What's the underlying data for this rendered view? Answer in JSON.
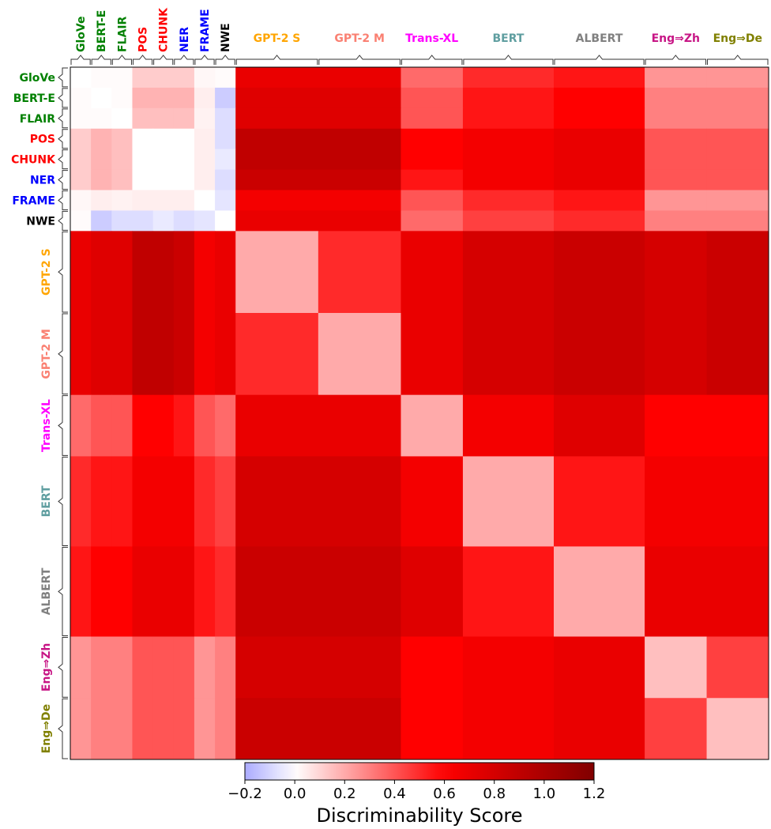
{
  "chart_data": {
    "type": "heatmap",
    "title": "",
    "groups": [
      {
        "label": "GloVe",
        "color": "#008000",
        "size": 1
      },
      {
        "label": "BERT-E",
        "color": "#008000",
        "size": 1
      },
      {
        "label": "FLAIR",
        "color": "#008000",
        "size": 1
      },
      {
        "label": "POS",
        "color": "#ff0000",
        "size": 1
      },
      {
        "label": "CHUNK",
        "color": "#ff0000",
        "size": 1
      },
      {
        "label": "NER",
        "color": "#0000ff",
        "size": 1
      },
      {
        "label": "FRAME",
        "color": "#0000ff",
        "size": 1
      },
      {
        "label": "NWE",
        "color": "#000000",
        "size": 1
      },
      {
        "label": "GPT-2 S",
        "color": "#ffa500",
        "size": 4
      },
      {
        "label": "GPT-2 M",
        "color": "#fa8072",
        "size": 4
      },
      {
        "label": "Trans-XL",
        "color": "#ff00ff",
        "size": 3
      },
      {
        "label": "BERT",
        "color": "#5f9ea0",
        "size": 4.4
      },
      {
        "label": "ALBERT",
        "color": "#808080",
        "size": 4.4
      },
      {
        "label": "Eng⇒Zh",
        "color": "#c71585",
        "size": 3
      },
      {
        "label": "Eng⇒De",
        "color": "#808000",
        "size": 3
      }
    ],
    "symmetric": true,
    "block_mean_values": [
      [
        0.0,
        0.01,
        0.01,
        0.12,
        0.12,
        0.12,
        0.02,
        0.01,
        0.7,
        0.7,
        0.35,
        0.5,
        0.55,
        0.25,
        0.25
      ],
      [
        0.01,
        0.0,
        0.01,
        0.18,
        0.18,
        0.18,
        0.04,
        -0.12,
        0.75,
        0.75,
        0.4,
        0.55,
        0.6,
        0.3,
        0.3
      ],
      [
        0.01,
        0.01,
        0.0,
        0.15,
        0.15,
        0.15,
        0.03,
        -0.08,
        0.75,
        0.75,
        0.4,
        0.55,
        0.6,
        0.3,
        0.3
      ],
      [
        0.12,
        0.18,
        0.15,
        0.0,
        0.0,
        0.0,
        0.04,
        -0.08,
        0.9,
        0.9,
        0.6,
        0.65,
        0.7,
        0.4,
        0.4
      ],
      [
        0.12,
        0.18,
        0.15,
        0.0,
        0.0,
        0.0,
        0.04,
        -0.05,
        0.9,
        0.9,
        0.6,
        0.65,
        0.7,
        0.4,
        0.4
      ],
      [
        0.12,
        0.18,
        0.15,
        0.0,
        0.0,
        0.0,
        0.04,
        -0.08,
        0.85,
        0.85,
        0.55,
        0.65,
        0.7,
        0.4,
        0.4
      ],
      [
        0.02,
        0.04,
        0.03,
        0.04,
        0.04,
        0.04,
        0.0,
        -0.06,
        0.65,
        0.65,
        0.4,
        0.5,
        0.55,
        0.25,
        0.25
      ],
      [
        0.01,
        -0.12,
        -0.08,
        -0.08,
        -0.05,
        -0.08,
        -0.06,
        0.0,
        0.7,
        0.7,
        0.35,
        0.45,
        0.5,
        0.3,
        0.3
      ],
      [
        0.7,
        0.75,
        0.75,
        0.9,
        0.9,
        0.85,
        0.65,
        0.7,
        0.2,
        0.5,
        0.7,
        0.8,
        0.85,
        0.8,
        0.85
      ],
      [
        0.7,
        0.75,
        0.75,
        0.9,
        0.9,
        0.85,
        0.65,
        0.7,
        0.5,
        0.2,
        0.7,
        0.8,
        0.85,
        0.8,
        0.85
      ],
      [
        0.35,
        0.4,
        0.4,
        0.6,
        0.6,
        0.55,
        0.4,
        0.35,
        0.7,
        0.7,
        0.2,
        0.65,
        0.75,
        0.6,
        0.6
      ],
      [
        0.5,
        0.55,
        0.55,
        0.65,
        0.65,
        0.65,
        0.5,
        0.45,
        0.8,
        0.8,
        0.65,
        0.2,
        0.55,
        0.65,
        0.65
      ],
      [
        0.55,
        0.6,
        0.6,
        0.7,
        0.7,
        0.7,
        0.55,
        0.5,
        0.85,
        0.85,
        0.75,
        0.55,
        0.2,
        0.7,
        0.7
      ],
      [
        0.25,
        0.3,
        0.3,
        0.4,
        0.4,
        0.4,
        0.25,
        0.3,
        0.8,
        0.8,
        0.6,
        0.65,
        0.7,
        0.15,
        0.45
      ],
      [
        0.25,
        0.3,
        0.3,
        0.4,
        0.4,
        0.4,
        0.25,
        0.3,
        0.85,
        0.85,
        0.6,
        0.65,
        0.7,
        0.45,
        0.15
      ]
    ],
    "colorbar": {
      "label": "Discriminability Score",
      "vmin": -0.2,
      "vmax": 1.2,
      "ticks": [
        "−0.2",
        "0.0",
        "0.2",
        "0.4",
        "0.6",
        "0.8",
        "1.0",
        "1.2"
      ],
      "tick_values": [
        -0.2,
        0.0,
        0.2,
        0.4,
        0.6,
        0.8,
        1.0,
        1.2
      ],
      "colormap": "seismic"
    }
  }
}
